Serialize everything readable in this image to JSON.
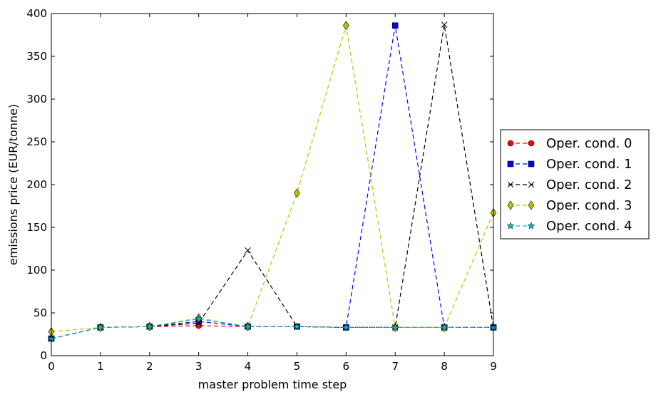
{
  "chart_data": {
    "type": "line",
    "title": "",
    "xlabel": "master problem time step",
    "ylabel": "emissions price (EUR/tonne)",
    "xlim": [
      0,
      9
    ],
    "ylim": [
      0,
      400
    ],
    "xticks": [
      0,
      1,
      2,
      3,
      4,
      5,
      6,
      7,
      8,
      9
    ],
    "yticks": [
      0,
      50,
      100,
      150,
      200,
      250,
      300,
      350,
      400
    ],
    "grid": false,
    "legend_placement": "outside right",
    "x": [
      0,
      1,
      2,
      3,
      4,
      5,
      6,
      7,
      8,
      9
    ],
    "series": [
      {
        "name": "Oper. cond. 0",
        "color": "#ff0000",
        "marker": "circle",
        "values": [
          20,
          33,
          34,
          35,
          34,
          34,
          33,
          33,
          33,
          33
        ]
      },
      {
        "name": "Oper. cond. 1",
        "color": "#0000ff",
        "marker": "square",
        "values": [
          20,
          33,
          34,
          40,
          34,
          34,
          33,
          386,
          33,
          33
        ]
      },
      {
        "name": "Oper. cond. 2",
        "color": "#000000",
        "marker": "x",
        "values": [
          20,
          33,
          34,
          38,
          123,
          34,
          33,
          33,
          387,
          33
        ]
      },
      {
        "name": "Oper. cond. 3",
        "color": "#bfbf00",
        "marker": "diamond",
        "values": [
          28,
          33,
          34,
          44,
          34,
          190,
          386,
          33,
          33,
          167
        ]
      },
      {
        "name": "Oper. cond. 4",
        "color": "#00bfbf",
        "marker": "star",
        "values": [
          20,
          33,
          34,
          43,
          34,
          34,
          33,
          33,
          33,
          33
        ]
      }
    ]
  }
}
